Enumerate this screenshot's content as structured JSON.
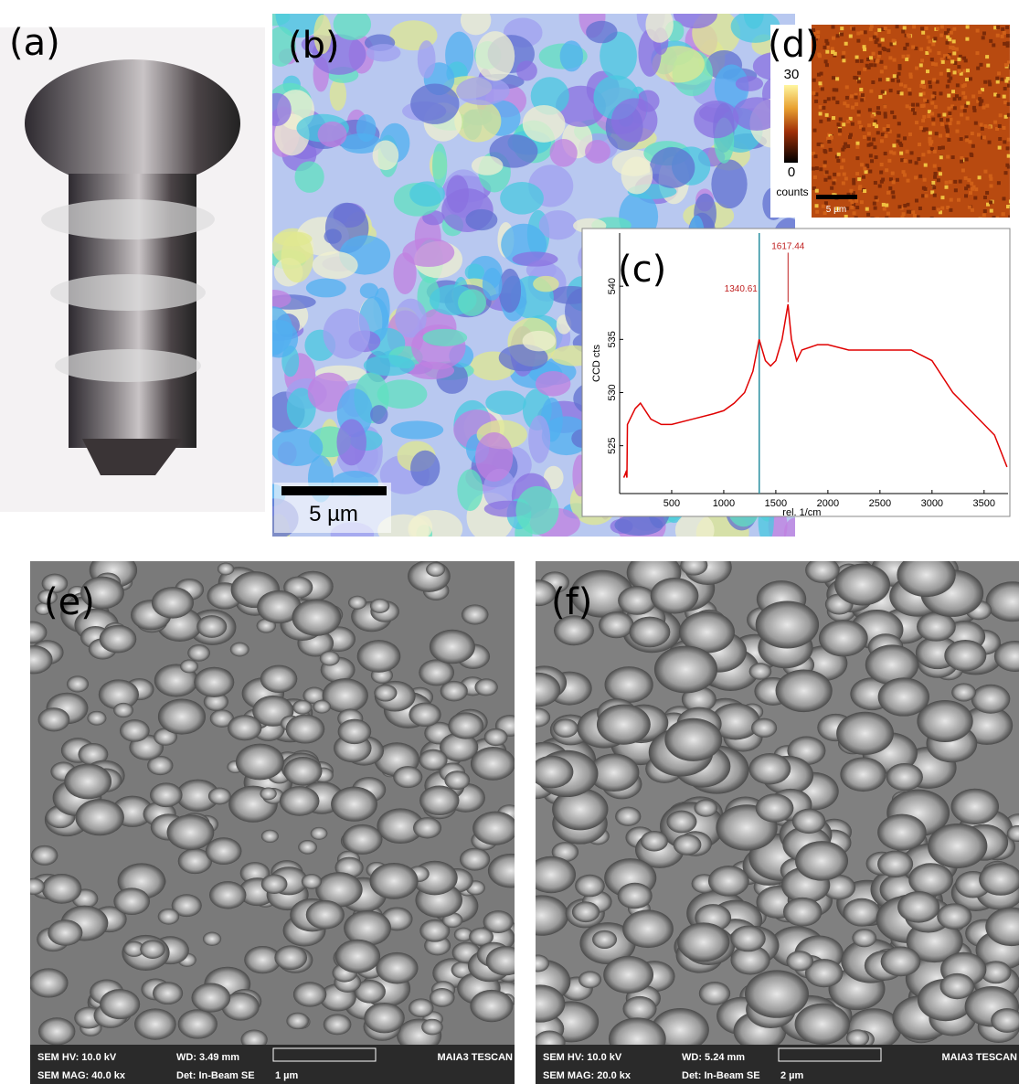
{
  "panels": {
    "a": {
      "label": "(a)"
    },
    "b": {
      "label": "(b)",
      "scale_bar": "5 µm"
    },
    "d": {
      "label": "(d)",
      "colorbar_ticks": [
        30,
        0
      ],
      "colorbar_unit": "counts",
      "scale_bar": "5 µm"
    },
    "e": {
      "label": "(e)",
      "info": [
        [
          "SEM HV: 10.0 kV",
          "WD: 3.49 mm",
          "MAIA3 TESCAN"
        ],
        [
          "SEM MAG: 40.0 kx",
          "Det: In-Beam SE",
          "1 µm"
        ]
      ]
    },
    "f": {
      "label": "(f)",
      "info": [
        [
          "SEM HV: 10.0 kV",
          "WD: 5.24 mm",
          "MAIA3 TESCAN"
        ],
        [
          "SEM MAG: 20.0 kx",
          "Det: In-Beam SE",
          "2 µm"
        ]
      ]
    }
  },
  "chart_data": {
    "type": "line",
    "label": "(c)",
    "xlabel": "rel. 1/cm",
    "ylabel": "CCD cts",
    "x": [
      40,
      60,
      70,
      75,
      100,
      150,
      200,
      300,
      400,
      500,
      700,
      900,
      1000,
      1100,
      1200,
      1280,
      1340,
      1400,
      1450,
      1500,
      1560,
      1617,
      1650,
      1700,
      1750,
      1900,
      2000,
      2200,
      2500,
      2800,
      3000,
      3200,
      3400,
      3600,
      3720
    ],
    "series": [
      {
        "color": "#e00000",
        "values": [
          522,
          522.5,
          522,
          527,
          527.5,
          528.5,
          529,
          527.5,
          527,
          527,
          527.5,
          528,
          528.3,
          529,
          530,
          532,
          535,
          533,
          532.5,
          533,
          535,
          538.3,
          535,
          533,
          534,
          534.5,
          534.5,
          534,
          534,
          534,
          533,
          530,
          528,
          526,
          523
        ]
      }
    ],
    "peaks": [
      1340.61,
      1617.44
    ],
    "peak_line_color": "#2a8fa0",
    "xlim": [
      0,
      3730
    ],
    "ylim": [
      520.5,
      545
    ],
    "xticks": [
      500,
      1000,
      1500,
      2000,
      2500,
      3000,
      3500
    ],
    "yticks": [
      525,
      530,
      535,
      540
    ]
  }
}
